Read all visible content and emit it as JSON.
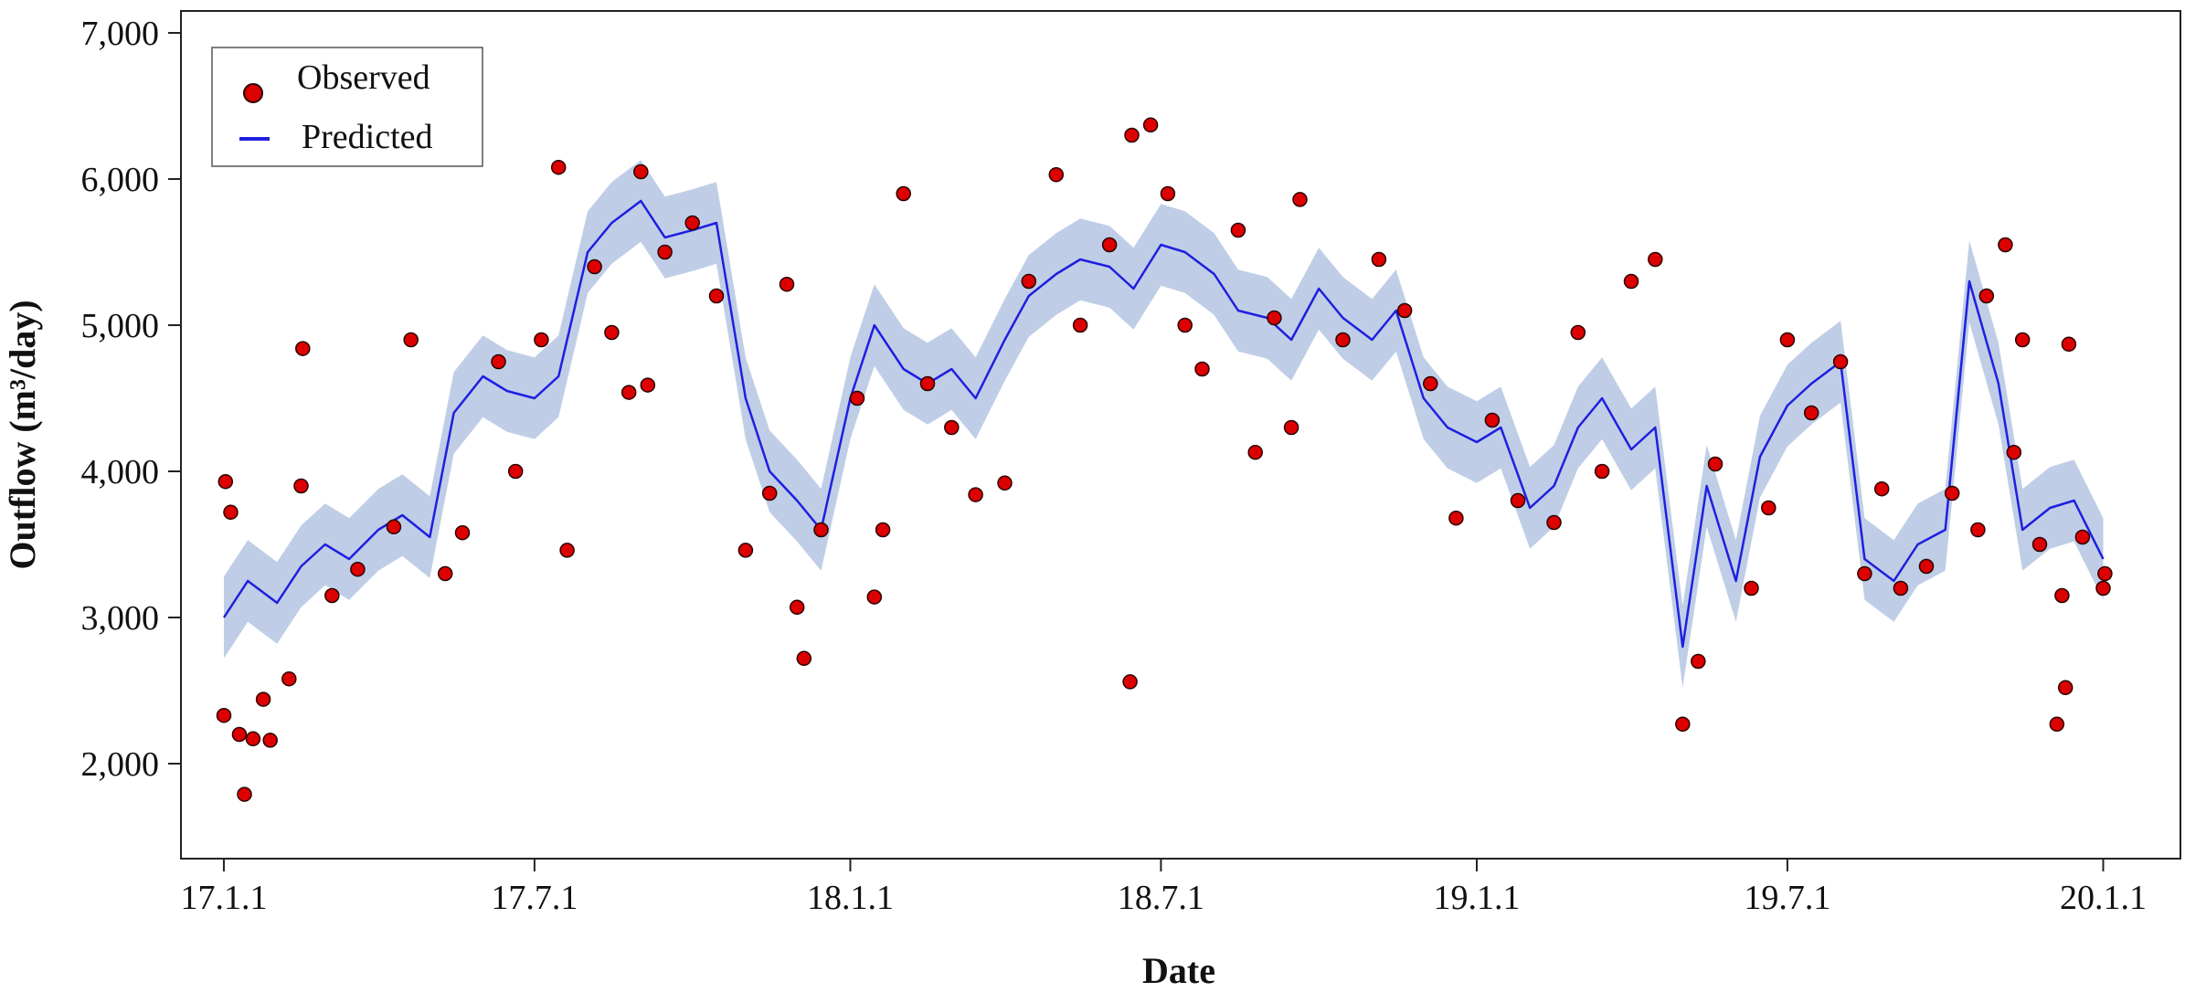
{
  "chart_data": {
    "type": "line",
    "title": "",
    "xlabel": "Date",
    "ylabel": "Outflow (m³/day)",
    "xlim": [
      "2016-12-07",
      "2020-02-15"
    ],
    "ylim": [
      1350,
      7150
    ],
    "x_ticks": [
      {
        "date": "2017-01-01",
        "label": "17.1.1"
      },
      {
        "date": "2017-07-01",
        "label": "17.7.1"
      },
      {
        "date": "2018-01-01",
        "label": "18.1.1"
      },
      {
        "date": "2018-07-01",
        "label": "18.7.1"
      },
      {
        "date": "2019-01-01",
        "label": "19.1.1"
      },
      {
        "date": "2019-07-01",
        "label": "19.7.1"
      },
      {
        "date": "2020-01-01",
        "label": "20.1.1"
      }
    ],
    "y_ticks": [
      {
        "value": 2000,
        "label": "2,000"
      },
      {
        "value": 3000,
        "label": "3,000"
      },
      {
        "value": 4000,
        "label": "4,000"
      },
      {
        "value": 5000,
        "label": "5,000"
      },
      {
        "value": 6000,
        "label": "6,000"
      },
      {
        "value": 7000,
        "label": "7,000"
      }
    ],
    "grid": false,
    "legend": {
      "position": "top-left",
      "entries": [
        {
          "label": "Observed",
          "marker": "circle"
        },
        {
          "label": "Predicted",
          "marker": "line"
        }
      ]
    },
    "colors": {
      "observed_fill": "#dd0000",
      "observed_edge": "#2a0000",
      "predicted_line": "#1f1fe0",
      "band_fill": "#b4c6e2"
    },
    "series": [
      {
        "name": "Predicted",
        "kind": "line",
        "points": [
          [
            "2017-01-01",
            3000
          ],
          [
            "2017-01-15",
            3250
          ],
          [
            "2017-02-01",
            3100
          ],
          [
            "2017-02-15",
            3350
          ],
          [
            "2017-03-01",
            3500
          ],
          [
            "2017-03-15",
            3400
          ],
          [
            "2017-04-01",
            3600
          ],
          [
            "2017-04-15",
            3700
          ],
          [
            "2017-05-01",
            3550
          ],
          [
            "2017-05-15",
            4400
          ],
          [
            "2017-06-01",
            4650
          ],
          [
            "2017-06-15",
            4550
          ],
          [
            "2017-07-01",
            4500
          ],
          [
            "2017-07-15",
            4650
          ],
          [
            "2017-08-01",
            5500
          ],
          [
            "2017-08-15",
            5700
          ],
          [
            "2017-09-01",
            5850
          ],
          [
            "2017-09-15",
            5600
          ],
          [
            "2017-10-01",
            5650
          ],
          [
            "2017-10-15",
            5700
          ],
          [
            "2017-11-01",
            4500
          ],
          [
            "2017-11-15",
            4000
          ],
          [
            "2017-12-01",
            3800
          ],
          [
            "2017-12-15",
            3600
          ],
          [
            "2018-01-01",
            4500
          ],
          [
            "2018-01-15",
            5000
          ],
          [
            "2018-02-01",
            4700
          ],
          [
            "2018-02-15",
            4600
          ],
          [
            "2018-03-01",
            4700
          ],
          [
            "2018-03-15",
            4500
          ],
          [
            "2018-04-01",
            4900
          ],
          [
            "2018-04-15",
            5200
          ],
          [
            "2018-05-01",
            5350
          ],
          [
            "2018-05-15",
            5450
          ],
          [
            "2018-06-01",
            5400
          ],
          [
            "2018-06-15",
            5250
          ],
          [
            "2018-07-01",
            5550
          ],
          [
            "2018-07-15",
            5500
          ],
          [
            "2018-08-01",
            5350
          ],
          [
            "2018-08-15",
            5100
          ],
          [
            "2018-09-01",
            5050
          ],
          [
            "2018-09-15",
            4900
          ],
          [
            "2018-10-01",
            5250
          ],
          [
            "2018-10-15",
            5050
          ],
          [
            "2018-11-01",
            4900
          ],
          [
            "2018-11-15",
            5100
          ],
          [
            "2018-12-01",
            4500
          ],
          [
            "2018-12-15",
            4300
          ],
          [
            "2019-01-01",
            4200
          ],
          [
            "2019-01-15",
            4300
          ],
          [
            "2019-02-01",
            3750
          ],
          [
            "2019-02-15",
            3900
          ],
          [
            "2019-03-01",
            4300
          ],
          [
            "2019-03-15",
            4500
          ],
          [
            "2019-04-01",
            4150
          ],
          [
            "2019-04-15",
            4300
          ],
          [
            "2019-05-01",
            2800
          ],
          [
            "2019-05-15",
            3900
          ],
          [
            "2019-06-01",
            3250
          ],
          [
            "2019-06-15",
            4100
          ],
          [
            "2019-07-01",
            4450
          ],
          [
            "2019-07-15",
            4600
          ],
          [
            "2019-08-01",
            4750
          ],
          [
            "2019-08-15",
            3400
          ],
          [
            "2019-09-01",
            3250
          ],
          [
            "2019-09-15",
            3500
          ],
          [
            "2019-10-01",
            3600
          ],
          [
            "2019-10-15",
            5300
          ],
          [
            "2019-11-01",
            4600
          ],
          [
            "2019-11-15",
            3600
          ],
          [
            "2019-12-01",
            3750
          ],
          [
            "2019-12-15",
            3800
          ],
          [
            "2020-01-01",
            3400
          ]
        ]
      },
      {
        "name": "Observed",
        "kind": "scatter",
        "points": [
          [
            "2017-01-01",
            2330
          ],
          [
            "2017-01-02",
            3930
          ],
          [
            "2017-01-05",
            3720
          ],
          [
            "2017-01-10",
            2200
          ],
          [
            "2017-01-13",
            1790
          ],
          [
            "2017-01-18",
            2170
          ],
          [
            "2017-01-24",
            2440
          ],
          [
            "2017-01-28",
            2160
          ],
          [
            "2017-02-08",
            2580
          ],
          [
            "2017-02-15",
            3900
          ],
          [
            "2017-02-16",
            4840
          ],
          [
            "2017-03-05",
            3150
          ],
          [
            "2017-03-20",
            3330
          ],
          [
            "2017-04-10",
            3620
          ],
          [
            "2017-04-20",
            4900
          ],
          [
            "2017-05-10",
            3300
          ],
          [
            "2017-05-20",
            3580
          ],
          [
            "2017-06-10",
            4750
          ],
          [
            "2017-06-20",
            4000
          ],
          [
            "2017-07-05",
            4900
          ],
          [
            "2017-07-15",
            6080
          ],
          [
            "2017-07-20",
            3460
          ],
          [
            "2017-08-05",
            5400
          ],
          [
            "2017-08-15",
            4950
          ],
          [
            "2017-08-25",
            4540
          ],
          [
            "2017-09-01",
            6050
          ],
          [
            "2017-09-05",
            4590
          ],
          [
            "2017-09-15",
            5500
          ],
          [
            "2017-10-01",
            5700
          ],
          [
            "2017-10-15",
            5200
          ],
          [
            "2017-11-01",
            3460
          ],
          [
            "2017-11-15",
            3850
          ],
          [
            "2017-11-25",
            5280
          ],
          [
            "2017-12-01",
            3070
          ],
          [
            "2017-12-05",
            2720
          ],
          [
            "2017-12-15",
            3600
          ],
          [
            "2018-01-05",
            4500
          ],
          [
            "2018-01-15",
            3140
          ],
          [
            "2018-01-20",
            3600
          ],
          [
            "2018-02-01",
            5900
          ],
          [
            "2018-02-15",
            4600
          ],
          [
            "2018-03-01",
            4300
          ],
          [
            "2018-03-15",
            3840
          ],
          [
            "2018-04-01",
            3920
          ],
          [
            "2018-04-15",
            5300
          ],
          [
            "2018-05-01",
            6030
          ],
          [
            "2018-05-15",
            5000
          ],
          [
            "2018-06-01",
            5550
          ],
          [
            "2018-06-13",
            2560
          ],
          [
            "2018-06-14",
            6300
          ],
          [
            "2018-06-25",
            6370
          ],
          [
            "2018-07-05",
            5900
          ],
          [
            "2018-07-15",
            5000
          ],
          [
            "2018-07-25",
            4700
          ],
          [
            "2018-08-15",
            5650
          ],
          [
            "2018-08-25",
            4130
          ],
          [
            "2018-09-05",
            5050
          ],
          [
            "2018-09-15",
            4300
          ],
          [
            "2018-09-20",
            5860
          ],
          [
            "2018-10-15",
            4900
          ],
          [
            "2018-11-05",
            5450
          ],
          [
            "2018-11-20",
            5100
          ],
          [
            "2018-12-05",
            4600
          ],
          [
            "2018-12-20",
            3680
          ],
          [
            "2019-01-10",
            4350
          ],
          [
            "2019-01-25",
            3800
          ],
          [
            "2019-02-15",
            3650
          ],
          [
            "2019-03-01",
            4950
          ],
          [
            "2019-03-15",
            4000
          ],
          [
            "2019-04-01",
            5300
          ],
          [
            "2019-04-15",
            5450
          ],
          [
            "2019-05-01",
            2270
          ],
          [
            "2019-05-10",
            2700
          ],
          [
            "2019-05-20",
            4050
          ],
          [
            "2019-06-10",
            3200
          ],
          [
            "2019-06-20",
            3750
          ],
          [
            "2019-07-01",
            4900
          ],
          [
            "2019-07-15",
            4400
          ],
          [
            "2019-08-01",
            4750
          ],
          [
            "2019-08-15",
            3300
          ],
          [
            "2019-08-25",
            3880
          ],
          [
            "2019-09-05",
            3200
          ],
          [
            "2019-09-20",
            3350
          ],
          [
            "2019-10-05",
            3850
          ],
          [
            "2019-10-20",
            3600
          ],
          [
            "2019-10-25",
            5200
          ],
          [
            "2019-11-05",
            5550
          ],
          [
            "2019-11-10",
            4130
          ],
          [
            "2019-11-15",
            4900
          ],
          [
            "2019-11-25",
            3500
          ],
          [
            "2019-12-05",
            2270
          ],
          [
            "2019-12-08",
            3150
          ],
          [
            "2019-12-10",
            2520
          ],
          [
            "2019-12-12",
            4870
          ],
          [
            "2019-12-20",
            3550
          ],
          [
            "2020-01-01",
            3200
          ],
          [
            "2020-01-02",
            3300
          ]
        ]
      }
    ]
  }
}
